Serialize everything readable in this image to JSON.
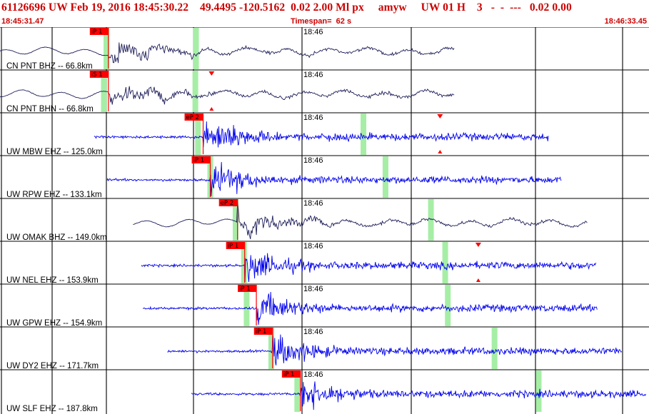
{
  "header": {
    "title": "61126696 UW Feb 19, 2016 18:45:30.22    49.4495 -120.5162  0.02 2.00 Ml px     amyw     UW 01 H    3   -  -  ---   0.02 0.00",
    "start_time": "18:45:31.47",
    "timespan": "Timespan=  62 s",
    "end_time": "18:46:33.45"
  },
  "minute_label": "18:46",
  "colors": {
    "background": "#ffffff",
    "header_text": "#cc0000",
    "trace_short_period": "#0000ee",
    "trace_broadband": "#1e1e5a",
    "pick_marker": "#ff0000",
    "window_band": "#a6eea6",
    "grid": "#000000"
  },
  "traces": [
    {
      "label": "CN PNT BHZ -- 66.8km",
      "pick": "iP 1",
      "type": "broadband",
      "ev_start": 0.0,
      "ev_end": 0.7,
      "onset": 0.167,
      "green": [
        0.164,
        0.302
      ]
    },
    {
      "label": "CN PNT BHN -- 66.8km",
      "pick": "iS 1",
      "type": "broadband",
      "ev_start": 0.0,
      "ev_end": 0.7,
      "onset": 0.167,
      "green": [
        0.16,
        0.301
      ]
    },
    {
      "label": "UW MBW EHZ -- 125.0km",
      "pick": "eP 2",
      "type": "short_period",
      "ev_start": 0.145,
      "ev_end": 0.845,
      "onset": 0.313,
      "green": [
        0.305,
        0.56
      ]
    },
    {
      "label": "UW RPW EHZ -- 133.1km",
      "pick": "iP 1",
      "type": "short_period",
      "ev_start": 0.165,
      "ev_end": 0.865,
      "onset": 0.324,
      "green": [
        0.324,
        0.594
      ]
    },
    {
      "label": "UW OMAK BHZ -- 149.0km",
      "pick": "eP 2",
      "type": "broadband",
      "ev_start": 0.205,
      "ev_end": 0.905,
      "onset": 0.366,
      "green": [
        0.363,
        0.664
      ]
    },
    {
      "label": "UW NEL EHZ -- 153.9km",
      "pick": "iP 1",
      "type": "short_period",
      "ev_start": 0.218,
      "ev_end": 0.918,
      "onset": 0.377,
      "green": [
        0.376,
        0.686
      ]
    },
    {
      "label": "UW GPW EHZ -- 154.9km",
      "pick": "iP 1",
      "type": "short_period",
      "ev_start": 0.22,
      "ev_end": 0.92,
      "onset": 0.395,
      "green": [
        0.38,
        0.69
      ]
    },
    {
      "label": "UW DY2 EHZ -- 171.7km",
      "pick": "iP 1",
      "type": "short_period",
      "ev_start": 0.258,
      "ev_end": 0.958,
      "onset": 0.42,
      "green": [
        0.418,
        0.762
      ]
    },
    {
      "label": "UW SLF EHZ -- 187.8km",
      "pick": "iP 1",
      "type": "short_period",
      "ev_start": 0.295,
      "ev_end": 0.995,
      "onset": 0.463,
      "green": [
        0.458,
        0.83
      ]
    }
  ],
  "triangles": [
    {
      "row": 1,
      "pos": 0.326
    },
    {
      "row": 2,
      "pos": 0.678
    },
    {
      "row": 5,
      "pos": 0.737
    }
  ],
  "amplitude_scale": "0.02 2.00"
}
